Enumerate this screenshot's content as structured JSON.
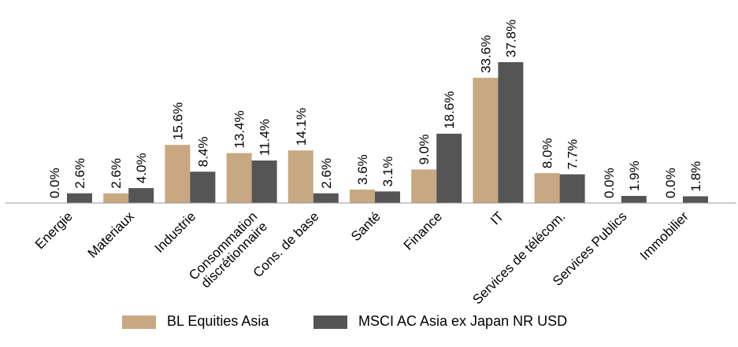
{
  "chart_data": {
    "type": "bar",
    "categories": [
      "Energie",
      "Materiaux",
      "Industrie",
      "Consommation discrétionnaire",
      "Cons. de base",
      "Santé",
      "Finance",
      "IT",
      "Services de télécom.",
      "Services Publics",
      "Immobilier"
    ],
    "series": [
      {
        "name": "BL Equities Asia",
        "color": "#c8a882",
        "values": [
          0.0,
          2.6,
          15.6,
          13.4,
          14.1,
          3.6,
          9.0,
          33.6,
          8.0,
          0.0,
          0.0
        ],
        "labels": [
          "0.0%",
          "2.6%",
          "15.6%",
          "13.4%",
          "14.1%",
          "3.6%",
          "9.0%",
          "33.6%",
          "8.0%",
          "0.0%",
          "0.0%"
        ]
      },
      {
        "name": "MSCI AC Asia ex Japan NR USD",
        "color": "#555555",
        "values": [
          2.6,
          4.0,
          8.4,
          11.4,
          2.6,
          3.1,
          18.6,
          37.8,
          7.7,
          1.9,
          1.8
        ],
        "labels": [
          "2.6%",
          "4.0%",
          "8.4%",
          "11.4%",
          "2.6%",
          "3.1%",
          "18.6%",
          "37.8%",
          "7.7%",
          "1.9%",
          "1.8%"
        ]
      }
    ],
    "ylim": [
      0,
      40
    ],
    "grid": false,
    "legend_position": "bottom",
    "title": "",
    "xlabel": "",
    "ylabel": ""
  },
  "legend": {
    "series1": "BL Equities Asia",
    "series2": "MSCI AC Asia ex Japan NR USD"
  }
}
